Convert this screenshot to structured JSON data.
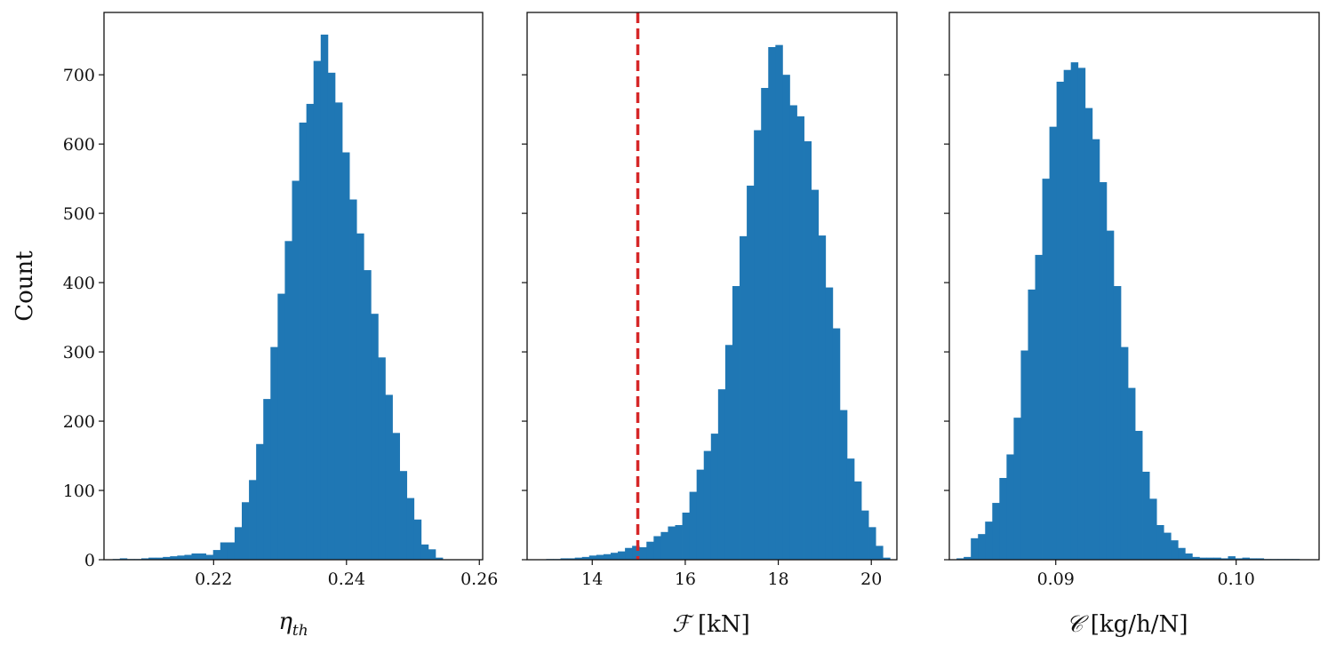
{
  "figure": {
    "ylabel": "Count",
    "colors": {
      "bar": "#1f77b4",
      "reference_line": "#d62728",
      "frame": "#111111"
    }
  },
  "chart_data": [
    {
      "type": "bar",
      "id": "eta",
      "xlabel": "η_th",
      "ylabel": "Count",
      "xlim": [
        0.2035,
        0.2605
      ],
      "ylim": [
        0,
        790
      ],
      "xticks": [
        0.22,
        0.24,
        0.26
      ],
      "xtick_labels": [
        "0.22",
        "0.24",
        "0.26"
      ],
      "yticks": [
        0,
        100,
        200,
        300,
        400,
        500,
        600,
        700
      ],
      "ytick_labels": [
        "0",
        "100",
        "200",
        "300",
        "400",
        "500",
        "600",
        "700"
      ],
      "grid": false,
      "bin_start": 0.2048,
      "bin_width": 0.00108,
      "values": [
        1,
        2,
        1,
        1,
        2,
        3,
        3,
        4,
        5,
        6,
        7,
        9,
        9,
        7,
        14,
        25,
        25,
        47,
        83,
        115,
        167,
        232,
        307,
        384,
        460,
        547,
        631,
        658,
        720,
        758,
        703,
        660,
        588,
        520,
        471,
        418,
        355,
        292,
        238,
        183,
        128,
        89,
        58,
        22,
        15,
        3
      ]
    },
    {
      "type": "bar",
      "id": "thrust",
      "xlabel": "F [kN]",
      "ylabel": "",
      "xlim": [
        12.6,
        20.55
      ],
      "ylim": [
        0,
        790
      ],
      "xticks": [
        14,
        16,
        18,
        20
      ],
      "xtick_labels": [
        "14",
        "16",
        "18",
        "20"
      ],
      "yticks": [
        0,
        100,
        200,
        300,
        400,
        500,
        600,
        700
      ],
      "ytick_labels": [
        "",
        "",
        "",
        "",
        "",
        "",
        "",
        ""
      ],
      "grid": false,
      "bin_start": 13.01,
      "bin_width": 0.154,
      "reference_line": {
        "x": 14.98,
        "orientation": "vertical",
        "style": "dashed"
      },
      "values": [
        1,
        1,
        2,
        2,
        3,
        4,
        6,
        7,
        8,
        10,
        12,
        17,
        20,
        18,
        26,
        34,
        40,
        48,
        50,
        68,
        98,
        130,
        157,
        182,
        246,
        310,
        395,
        467,
        540,
        620,
        681,
        740,
        743,
        700,
        656,
        640,
        604,
        534,
        468,
        393,
        334,
        216,
        146,
        113,
        71,
        47,
        20,
        3
      ]
    },
    {
      "type": "bar",
      "id": "tsfc",
      "xlabel": "C [kg/h/N]",
      "ylabel": "",
      "xlim": [
        0.0841,
        0.1046
      ],
      "ylim": [
        0,
        790
      ],
      "xticks": [
        0.09,
        0.1
      ],
      "xtick_labels": [
        "0.09",
        "0.10"
      ],
      "yticks": [
        0,
        100,
        200,
        300,
        400,
        500,
        600,
        700
      ],
      "ytick_labels": [
        "",
        "",
        "",
        "",
        "",
        "",
        "",
        ""
      ],
      "grid": false,
      "bin_start": 0.0845,
      "bin_width": 0.000396,
      "values": [
        2,
        4,
        31,
        37,
        55,
        82,
        118,
        152,
        205,
        302,
        390,
        440,
        550,
        625,
        690,
        707,
        718,
        710,
        652,
        607,
        545,
        475,
        395,
        307,
        248,
        186,
        127,
        88,
        50,
        39,
        28,
        17,
        9,
        4,
        3,
        3,
        3,
        2,
        5,
        2,
        3,
        2,
        2,
        1,
        1,
        1,
        1,
        1
      ]
    }
  ]
}
